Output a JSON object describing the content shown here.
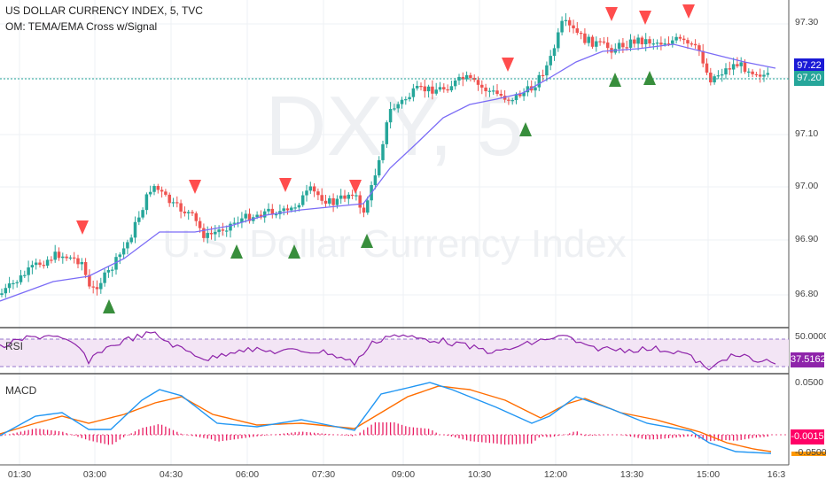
{
  "header": {
    "symbol_line": "US DOLLAR CURRENCY INDEX, 5, TVC",
    "indicator_line": "OM: TEMA/EMA Cross w/Signal"
  },
  "watermark": {
    "ticker": "DXY, 5",
    "name": "U.S. Dollar Currency Index"
  },
  "price_scale": {
    "labels": [
      "97.30",
      "97.10",
      "97.00",
      "96.90",
      "96.80"
    ],
    "last_price_tag": "97.20",
    "ema_tag": "97.22",
    "colors": {
      "last_price": "#26a69a",
      "ema": "#1a1ad6"
    }
  },
  "rsi_pane": {
    "title": "RSI",
    "value_tag": "37.5162",
    "partial_label": "50.0000",
    "color": "#8e24aa"
  },
  "macd_pane": {
    "title": "MACD",
    "top_label": "0.0500",
    "value_tag": "-0.0015",
    "bottom_label": "-0.0500",
    "colors": {
      "macd": "#2196f3",
      "signal": "#ff6d00",
      "hist": "#e91e63",
      "tag": "#ff0066"
    }
  },
  "time_axis": {
    "labels": [
      "01:30",
      "03:00",
      "04:30",
      "06:00",
      "07:30",
      "09:00",
      "10:30",
      "12:00",
      "13:30",
      "15:00",
      "16:3"
    ]
  },
  "colors": {
    "up": "#26a69a",
    "down": "#ef5350",
    "ema_line": "#7b6cf6",
    "buy": "#388e3c",
    "sell": "#ff4d4d"
  }
}
